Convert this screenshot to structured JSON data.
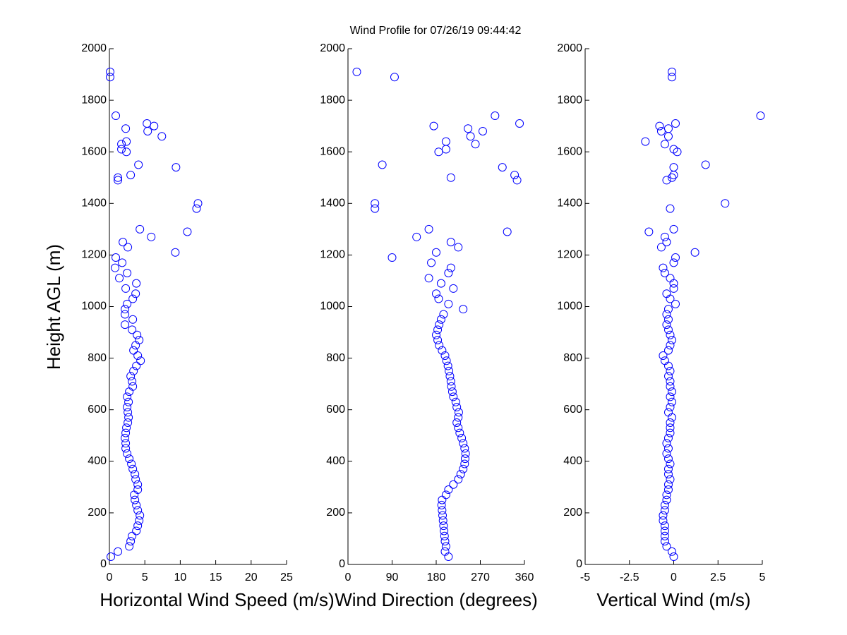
{
  "chart_data": [
    {
      "type": "scatter",
      "title": "Wind Profile for  07/26/19 09:44:42",
      "xlabel": "Horizontal Wind Speed (m/s)",
      "ylabel": "Height AGL (m)",
      "color": "#0000ff",
      "xlim": [
        0,
        25
      ],
      "xticks": [
        0,
        5,
        10,
        15,
        20,
        25
      ],
      "ylim": [
        0,
        2000
      ],
      "yticks": [
        0,
        200,
        400,
        600,
        800,
        1000,
        1200,
        1400,
        1600,
        1800,
        2000
      ],
      "x": [
        0.2,
        1.2,
        2.8,
        3.0,
        3.2,
        3.8,
        4.0,
        4.2,
        4.3,
        4.0,
        3.8,
        3.6,
        3.5,
        4.0,
        4.0,
        3.7,
        3.6,
        3.3,
        3.1,
        2.8,
        2.5,
        2.3,
        2.3,
        2.2,
        2.3,
        2.4,
        2.6,
        2.7,
        2.6,
        2.5,
        2.7,
        2.5,
        2.8,
        3.3,
        3.2,
        3.0,
        3.4,
        3.8,
        4.4,
        4.0,
        3.4,
        3.7,
        4.2,
        3.9,
        3.2,
        2.2,
        3.3,
        2.2,
        2.2,
        2.5,
        3.3,
        3.7,
        2.3,
        3.8,
        1.4,
        2.5,
        0.8,
        1.8,
        0.9,
        9.3,
        2.6,
        1.9,
        5.9,
        11.0,
        4.3,
        12.3,
        12.5,
        1.2,
        1.2,
        3.0,
        9.4,
        4.1,
        2.4,
        1.7,
        1.7,
        2.4,
        7.4,
        5.4,
        2.3,
        6.3,
        5.3,
        0.9,
        0.1,
        0.1
      ],
      "values": [
        30,
        50,
        70,
        90,
        110,
        130,
        150,
        170,
        190,
        210,
        230,
        250,
        270,
        290,
        310,
        330,
        350,
        370,
        390,
        410,
        430,
        450,
        470,
        490,
        510,
        530,
        550,
        570,
        590,
        610,
        630,
        650,
        670,
        690,
        710,
        730,
        750,
        770,
        790,
        810,
        830,
        850,
        870,
        890,
        910,
        930,
        950,
        970,
        990,
        1010,
        1030,
        1050,
        1070,
        1090,
        1110,
        1130,
        1150,
        1170,
        1190,
        1210,
        1230,
        1250,
        1270,
        1290,
        1300,
        1380,
        1400,
        1490,
        1500,
        1510,
        1540,
        1550,
        1600,
        1610,
        1630,
        1640,
        1660,
        1680,
        1690,
        1700,
        1710,
        1740,
        1890,
        1910
      ]
    },
    {
      "type": "scatter",
      "xlabel": "Wind Direction (degrees)",
      "color": "#0000ff",
      "xlim": [
        0,
        360
      ],
      "xticks": [
        0,
        90,
        180,
        270,
        360
      ],
      "ylim": [
        0,
        2000
      ],
      "yticks": [
        0,
        200,
        400,
        600,
        800,
        1000,
        1200,
        1400,
        1600,
        1800,
        2000
      ],
      "x": [
        205,
        198,
        200,
        198,
        197,
        196,
        195,
        194,
        193,
        192,
        191,
        192,
        200,
        205,
        215,
        225,
        230,
        235,
        238,
        239,
        240,
        238,
        235,
        232,
        228,
        225,
        222,
        225,
        226,
        222,
        220,
        215,
        213,
        211,
        210,
        208,
        206,
        204,
        201,
        198,
        192,
        186,
        183,
        180,
        183,
        186,
        190,
        195,
        235,
        205,
        185,
        180,
        215,
        190,
        165,
        205,
        210,
        170,
        90,
        180,
        225,
        210,
        140,
        325,
        165,
        55,
        55,
        345,
        210,
        340,
        315,
        70,
        185,
        200,
        260,
        200,
        250,
        275,
        245,
        175,
        350,
        300,
        95,
        18
      ],
      "values": [
        30,
        50,
        70,
        90,
        110,
        130,
        150,
        170,
        190,
        210,
        230,
        250,
        270,
        290,
        310,
        330,
        350,
        370,
        390,
        410,
        430,
        450,
        470,
        490,
        510,
        530,
        550,
        570,
        590,
        610,
        630,
        650,
        670,
        690,
        710,
        730,
        750,
        770,
        790,
        810,
        830,
        850,
        870,
        890,
        910,
        930,
        950,
        970,
        990,
        1010,
        1030,
        1050,
        1070,
        1090,
        1110,
        1130,
        1150,
        1170,
        1190,
        1210,
        1230,
        1250,
        1270,
        1290,
        1300,
        1380,
        1400,
        1490,
        1500,
        1510,
        1540,
        1550,
        1600,
        1610,
        1630,
        1640,
        1660,
        1680,
        1690,
        1700,
        1710,
        1740,
        1890,
        1910
      ]
    },
    {
      "type": "scatter",
      "xlabel": "Vertical Wind (m/s)",
      "color": "#0000ff",
      "xlim": [
        -5,
        5
      ],
      "xticks": [
        -5,
        -2.5,
        0,
        2.5,
        5
      ],
      "ylim": [
        0,
        2000
      ],
      "yticks": [
        0,
        200,
        400,
        600,
        800,
        1000,
        1200,
        1400,
        1600,
        1800,
        2000
      ],
      "x": [
        0,
        -0.1,
        -0.4,
        -0.5,
        -0.5,
        -0.5,
        -0.5,
        -0.6,
        -0.6,
        -0.5,
        -0.5,
        -0.4,
        -0.4,
        -0.3,
        -0.3,
        -0.2,
        -0.3,
        -0.3,
        -0.2,
        -0.3,
        -0.4,
        -0.3,
        -0.4,
        -0.3,
        -0.2,
        -0.2,
        -0.2,
        -0.1,
        -0.3,
        -0.2,
        -0.1,
        -0.2,
        -0.1,
        -0.2,
        -0.2,
        -0.3,
        -0.2,
        -0.3,
        -0.5,
        -0.6,
        -0.3,
        -0.2,
        -0.1,
        -0.2,
        -0.3,
        -0.4,
        -0.3,
        -0.4,
        -0.3,
        0.1,
        -0.2,
        -0.4,
        0.0,
        0.0,
        -0.2,
        -0.5,
        -0.6,
        0.0,
        0.1,
        1.2,
        -0.7,
        -0.4,
        -0.5,
        -1.4,
        0.0,
        -0.2,
        2.9,
        -0.4,
        -0.1,
        0.0,
        0.0,
        1.8,
        0.2,
        0.0,
        -0.5,
        -1.6,
        -0.3,
        -0.7,
        -0.3,
        -0.8,
        0.1,
        4.9,
        -0.1,
        -0.1
      ],
      "values": [
        30,
        50,
        70,
        90,
        110,
        130,
        150,
        170,
        190,
        210,
        230,
        250,
        270,
        290,
        310,
        330,
        350,
        370,
        390,
        410,
        430,
        450,
        470,
        490,
        510,
        530,
        550,
        570,
        590,
        610,
        630,
        650,
        670,
        690,
        710,
        730,
        750,
        770,
        790,
        810,
        830,
        850,
        870,
        890,
        910,
        930,
        950,
        970,
        990,
        1010,
        1030,
        1050,
        1070,
        1090,
        1110,
        1130,
        1150,
        1170,
        1190,
        1210,
        1230,
        1250,
        1270,
        1290,
        1300,
        1380,
        1400,
        1490,
        1500,
        1510,
        1540,
        1550,
        1600,
        1610,
        1630,
        1640,
        1660,
        1680,
        1690,
        1700,
        1710,
        1740,
        1890,
        1910
      ]
    }
  ]
}
